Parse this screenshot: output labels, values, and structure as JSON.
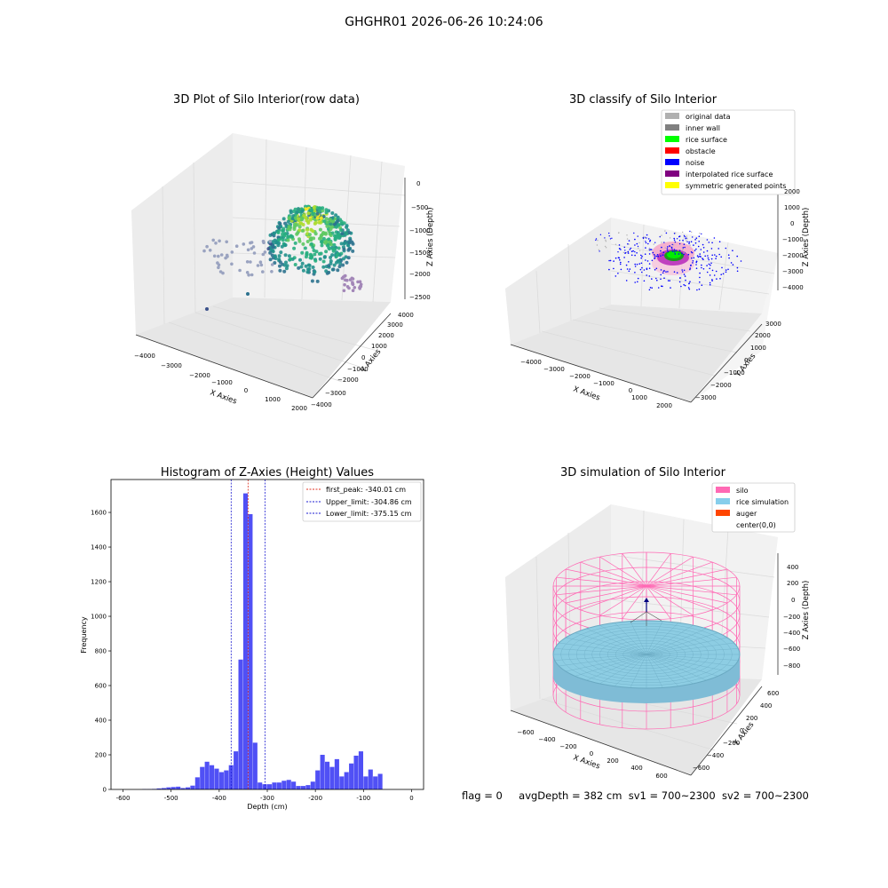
{
  "figure_title": "GHGHR01 2026-06-26 10:24:06",
  "status_line": {
    "flag": "flag = 0",
    "avg_depth": "avgDepth = 382 cm",
    "sv1": "sv1 = 700~2300",
    "sv2": "sv2 = 700~2300"
  },
  "colors": {
    "hist_bar": "#5050f5",
    "peak_line": "#e03020",
    "limit_line": "#1a1ad0",
    "silo_wire": "#ff69b4",
    "rice_fill": "#87ceeb",
    "auger": "#ff4500",
    "original_data": "#b0b0b0",
    "inner_wall": "#808080",
    "rice_surface": "#00ff00",
    "obstacle": "#ff0000",
    "noise": "#0000ff",
    "interpolated": "#800080",
    "symmetric": "#ffff00"
  },
  "chart_data": [
    {
      "type": "scatter",
      "projection": "3d",
      "title": "3D Plot of Silo Interior(row data)",
      "xlabel": "X Axies",
      "ylabel": "Y Axies",
      "zlabel": "Z Axies (Depth)",
      "x_ticks": [
        "−4000",
        "−3000",
        "−2000",
        "−1000",
        "0",
        "1000",
        "2000"
      ],
      "y_ticks": [
        "−4000",
        "−3000",
        "−2000",
        "−1000",
        "0",
        "1000",
        "2000",
        "3000",
        "4000"
      ],
      "z_ticks": [
        "0",
        "−500",
        "−1000",
        "−1500",
        "−2000",
        "−2500"
      ],
      "colormap": "viridis",
      "grid": true
    },
    {
      "type": "scatter",
      "projection": "3d",
      "title": "3D classify of Silo Interior",
      "xlabel": "X Axies",
      "ylabel": "Y Axies",
      "zlabel": "Z Axies (Depth)",
      "x_ticks": [
        "−4000",
        "−3000",
        "−2000",
        "−1000",
        "0",
        "1000",
        "2000"
      ],
      "y_ticks": [
        "−3000",
        "−2000",
        "−1000",
        "0",
        "1000",
        "2000",
        "3000"
      ],
      "z_ticks": [
        "2000",
        "1000",
        "0",
        "−1000",
        "−2000",
        "−3000",
        "−4000"
      ],
      "legend": [
        "original data",
        "inner wall",
        "rice surface",
        "obstacle",
        "noise",
        "interpolated rice surface",
        "symmetric generated points"
      ],
      "legend_position": "top-right",
      "grid": true
    },
    {
      "type": "bar",
      "title": "Histogram of Z-Axies (Height) Values",
      "xlabel": "Depth (cm)",
      "ylabel": "Frequency",
      "xlim": [
        -625,
        25
      ],
      "ylim": [
        0,
        1790
      ],
      "x_ticks": [
        -600,
        -500,
        -400,
        -300,
        -200,
        -100,
        0
      ],
      "y_ticks": [
        0,
        200,
        400,
        600,
        800,
        1000,
        1200,
        1400,
        1600
      ],
      "bin_width": 10,
      "bins": [
        [
          -560,
          2
        ],
        [
          -550,
          2
        ],
        [
          -540,
          3
        ],
        [
          -530,
          6
        ],
        [
          -520,
          8
        ],
        [
          -510,
          12
        ],
        [
          -500,
          14
        ],
        [
          -490,
          16
        ],
        [
          -480,
          8
        ],
        [
          -470,
          12
        ],
        [
          -460,
          22
        ],
        [
          -450,
          70
        ],
        [
          -440,
          130
        ],
        [
          -430,
          160
        ],
        [
          -420,
          140
        ],
        [
          -410,
          120
        ],
        [
          -400,
          100
        ],
        [
          -390,
          110
        ],
        [
          -380,
          140
        ],
        [
          -370,
          220
        ],
        [
          -360,
          750
        ],
        [
          -350,
          1710
        ],
        [
          -340,
          1590
        ],
        [
          -330,
          270
        ],
        [
          -320,
          40
        ],
        [
          -310,
          30
        ],
        [
          -300,
          30
        ],
        [
          -290,
          40
        ],
        [
          -280,
          40
        ],
        [
          -270,
          50
        ],
        [
          -260,
          55
        ],
        [
          -250,
          45
        ],
        [
          -240,
          20
        ],
        [
          -230,
          20
        ],
        [
          -220,
          25
        ],
        [
          -210,
          45
        ],
        [
          -200,
          110
        ],
        [
          -190,
          200
        ],
        [
          -180,
          160
        ],
        [
          -170,
          130
        ],
        [
          -160,
          175
        ],
        [
          -150,
          75
        ],
        [
          -140,
          100
        ],
        [
          -130,
          150
        ],
        [
          -120,
          195
        ],
        [
          -110,
          220
        ],
        [
          -100,
          75
        ],
        [
          -90,
          115
        ],
        [
          -80,
          75
        ],
        [
          -70,
          90
        ]
      ],
      "vlines": [
        {
          "label": "first_peak: -340.01 cm",
          "x": -340.01,
          "color": "#e03020"
        },
        {
          "label": "Upper_limit: -304.86 cm",
          "x": -304.86,
          "color": "#1a1ad0"
        },
        {
          "label": "Lower_limit: -375.15 cm",
          "x": -375.15,
          "color": "#1a1ad0"
        }
      ],
      "legend_position": "top-right"
    },
    {
      "type": "surface",
      "projection": "3d",
      "title": "3D simulation of Silo Interior",
      "xlabel": "X Axies",
      "ylabel": "Y Axies",
      "zlabel": "Z Axies (Depth)",
      "x_ticks": [
        "−600",
        "−400",
        "−200",
        "0",
        "200",
        "400",
        "600"
      ],
      "y_ticks": [
        "−600",
        "−400",
        "−200",
        "0",
        "200",
        "400",
        "600"
      ],
      "z_ticks": [
        "400",
        "200",
        "0",
        "−200",
        "−400",
        "−600",
        "−800"
      ],
      "legend": [
        "silo",
        "rice simulation",
        "auger",
        "center(0,0)"
      ],
      "legend_position": "top-right",
      "grid": true
    }
  ]
}
